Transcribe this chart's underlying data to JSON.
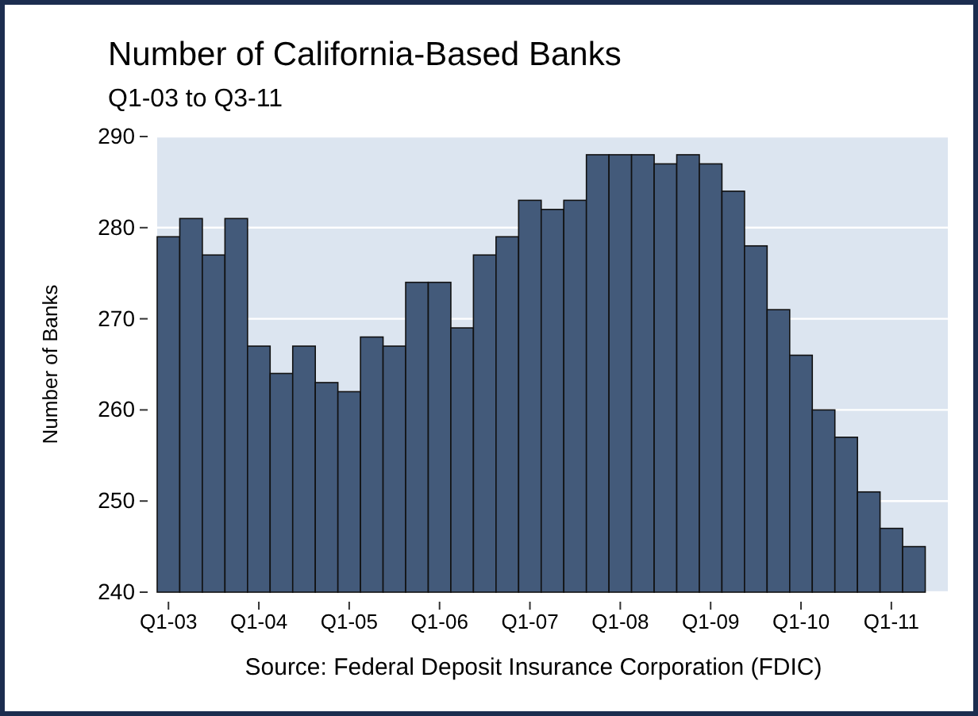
{
  "chart_data": {
    "type": "bar",
    "title": "Number of California-Based Banks",
    "subtitle": "Q1-03 to Q3-11",
    "ylabel": "Number of Banks",
    "annotations": [
      "Source: Federal Deposit Insurance Corporation (FDIC)"
    ],
    "categories": [
      "Q1-03",
      null,
      null,
      null,
      "Q1-04",
      null,
      null,
      null,
      "Q1-05",
      null,
      null,
      null,
      "Q1-06",
      null,
      null,
      null,
      "Q1-07",
      null,
      null,
      null,
      "Q1-08",
      null,
      null,
      null,
      "Q1-09",
      null,
      null,
      null,
      "Q1-10",
      null,
      null,
      null,
      "Q1-11",
      null,
      null
    ],
    "values": [
      279,
      281,
      277,
      281,
      267,
      264,
      267,
      263,
      262,
      268,
      267,
      274,
      274,
      269,
      277,
      279,
      283,
      282,
      283,
      288,
      288,
      288,
      287,
      288,
      287,
      284,
      278,
      271,
      266,
      260,
      257,
      251,
      247,
      245,
      null
    ],
    "color": "#435a7a",
    "ylim": [
      240,
      290
    ],
    "yticks": [
      240,
      250,
      260,
      270,
      280,
      290
    ],
    "grid": "y"
  }
}
